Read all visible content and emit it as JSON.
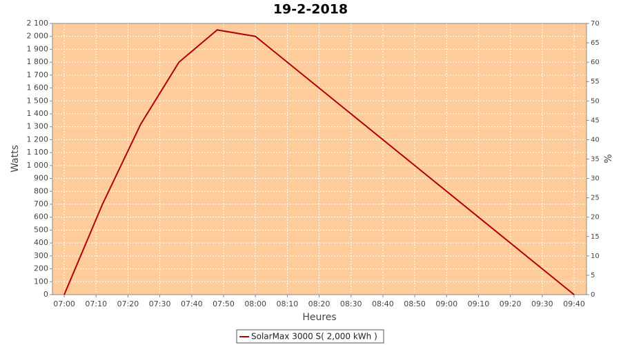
{
  "chart_data": {
    "type": "line",
    "title": "19-2-2018",
    "x_label": "Heures",
    "y_label": "Watts",
    "y2_label": "%",
    "x": [
      420,
      432,
      444,
      456,
      468,
      480,
      580
    ],
    "series": [
      {
        "name": "SolarMax 3000 S( 2,000 kWh )",
        "color": "#b00000",
        "values": [
          0,
          700,
          1320,
          1800,
          2050,
          2000,
          0
        ]
      }
    ],
    "xlim": [
      416.3,
      583.9
    ],
    "xticks": [
      {
        "value": 420,
        "label": "07:00"
      },
      {
        "value": 430,
        "label": "07:10"
      },
      {
        "value": 440,
        "label": "07:20"
      },
      {
        "value": 450,
        "label": "07:30"
      },
      {
        "value": 460,
        "label": "07:40"
      },
      {
        "value": 470,
        "label": "07:50"
      },
      {
        "value": 480,
        "label": "08:00"
      },
      {
        "value": 490,
        "label": "08:10"
      },
      {
        "value": 500,
        "label": "08:20"
      },
      {
        "value": 510,
        "label": "08:30"
      },
      {
        "value": 520,
        "label": "08:40"
      },
      {
        "value": 530,
        "label": "08:50"
      },
      {
        "value": 540,
        "label": "09:00"
      },
      {
        "value": 550,
        "label": "09:10"
      },
      {
        "value": 560,
        "label": "09:20"
      },
      {
        "value": 570,
        "label": "09:30"
      },
      {
        "value": 580,
        "label": "09:40"
      }
    ],
    "ylim": [
      0,
      2100
    ],
    "yticks": [
      0,
      100,
      200,
      300,
      400,
      500,
      600,
      700,
      800,
      900,
      {
        "value": 1000,
        "label": "1 000"
      },
      {
        "value": 1100,
        "label": "1 100"
      },
      {
        "value": 1200,
        "label": "1 200"
      },
      {
        "value": 1300,
        "label": "1 300"
      },
      {
        "value": 1400,
        "label": "1 400"
      },
      {
        "value": 1500,
        "label": "1 500"
      },
      {
        "value": 1600,
        "label": "1 600"
      },
      {
        "value": 1700,
        "label": "1 700"
      },
      {
        "value": 1800,
        "label": "1 800"
      },
      {
        "value": 1900,
        "label": "1 900"
      },
      {
        "value": 2000,
        "label": "2 000"
      },
      {
        "value": 2100,
        "label": "2 100"
      }
    ],
    "y2lim": [
      0,
      70
    ],
    "y2ticks": [
      0,
      5,
      10,
      15,
      20,
      25,
      30,
      35,
      40,
      45,
      50,
      55,
      60,
      65,
      70
    ],
    "plot_background": "#fecc9a",
    "grid": true,
    "legend_position": "bottom"
  }
}
